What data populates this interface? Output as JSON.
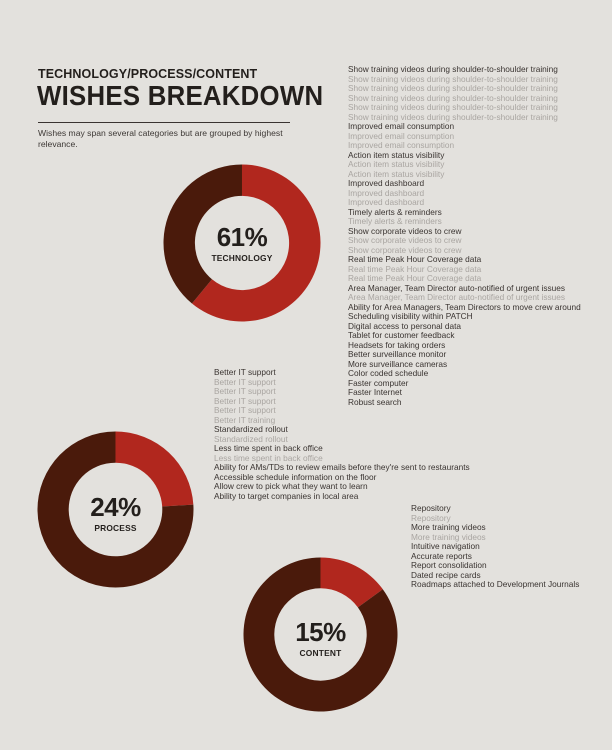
{
  "header": {
    "subtitle": "TECHNOLOGY/PROCESS/CONTENT",
    "title": "WISHES BREAKDOWN",
    "note": "Wishes may span several categories but are grouped by highest relevance."
  },
  "colors": {
    "background": "#e3e1dd",
    "share": "#b1271e",
    "remainder": "#4a1a0b",
    "hole": "#e3e1dd",
    "primary_text": "#3a3431",
    "repeat_text": "#a9a5a1"
  },
  "chart_data": [
    {
      "type": "pie",
      "variant": "donut",
      "label": "TECHNOLOGY",
      "percent_label": "61%",
      "values": [
        61,
        39
      ],
      "colors": [
        "#b1271e",
        "#4a1a0b"
      ],
      "wishes": [
        {
          "text": "Show training videos during shoulder-to-shoulder training",
          "repeat": false
        },
        {
          "text": "Show training videos during shoulder-to-shoulder training",
          "repeat": true
        },
        {
          "text": "Show training videos during shoulder-to-shoulder training",
          "repeat": true
        },
        {
          "text": "Show training videos during shoulder-to-shoulder training",
          "repeat": true
        },
        {
          "text": "Show training videos during shoulder-to-shoulder training",
          "repeat": true
        },
        {
          "text": "Show training videos during shoulder-to-shoulder training",
          "repeat": true
        },
        {
          "text": "Improved email consumption",
          "repeat": false
        },
        {
          "text": "Improved email consumption",
          "repeat": true
        },
        {
          "text": "Improved email consumption",
          "repeat": true
        },
        {
          "text": "Action item status visibility",
          "repeat": false
        },
        {
          "text": "Action item status visibility",
          "repeat": true
        },
        {
          "text": "Action item status visibility",
          "repeat": true
        },
        {
          "text": "Improved dashboard",
          "repeat": false
        },
        {
          "text": "Improved dashboard",
          "repeat": true
        },
        {
          "text": "Improved dashboard",
          "repeat": true
        },
        {
          "text": "Timely alerts & reminders",
          "repeat": false
        },
        {
          "text": "Timely alerts & reminders",
          "repeat": true
        },
        {
          "text": "Show corporate videos to crew",
          "repeat": false
        },
        {
          "text": "Show corporate videos to crew",
          "repeat": true
        },
        {
          "text": "Show corporate videos to crew",
          "repeat": true
        },
        {
          "text": "Real time Peak Hour Coverage data",
          "repeat": false
        },
        {
          "text": "Real time Peak Hour Coverage data",
          "repeat": true
        },
        {
          "text": "Real time Peak Hour Coverage data",
          "repeat": true
        },
        {
          "text": "Area Manager, Team Director auto-notified of urgent issues",
          "repeat": false
        },
        {
          "text": "Area Manager, Team Director auto-notified of urgent issues",
          "repeat": true
        },
        {
          "text": "Ability for Area Managers, Team Directors to move crew around",
          "repeat": false
        },
        {
          "text": "Scheduling visibility within PATCH",
          "repeat": false
        },
        {
          "text": "Digital access to personal data",
          "repeat": false
        },
        {
          "text": "Tablet for customer feedback",
          "repeat": false
        },
        {
          "text": "Headsets for taking orders",
          "repeat": false
        },
        {
          "text": "Better surveillance monitor",
          "repeat": false
        },
        {
          "text": "More surveillance cameras",
          "repeat": false
        },
        {
          "text": "Color coded schedule",
          "repeat": false
        },
        {
          "text": "Faster computer",
          "repeat": false
        },
        {
          "text": "Faster Internet",
          "repeat": false
        },
        {
          "text": "Robust search",
          "repeat": false
        }
      ]
    },
    {
      "type": "pie",
      "variant": "donut",
      "label": "PROCESS",
      "percent_label": "24%",
      "values": [
        24,
        76
      ],
      "colors": [
        "#b1271e",
        "#4a1a0b"
      ],
      "wishes": [
        {
          "text": "Better IT support",
          "repeat": false
        },
        {
          "text": "Better IT support",
          "repeat": true
        },
        {
          "text": "Better IT support",
          "repeat": true
        },
        {
          "text": "Better IT support",
          "repeat": true
        },
        {
          "text": "Better IT support",
          "repeat": true
        },
        {
          "text": "Better IT training",
          "repeat": true
        },
        {
          "text": "Standardized rollout",
          "repeat": false
        },
        {
          "text": "Standardized rollout",
          "repeat": true
        },
        {
          "text": "Less time spent in back office",
          "repeat": false
        },
        {
          "text": "Less time spent in back office",
          "repeat": true
        },
        {
          "text": "Ability for AMs/TDs to review emails before they're sent to restaurants",
          "repeat": false
        },
        {
          "text": "Accessible schedule information on the floor",
          "repeat": false
        },
        {
          "text": "Allow crew to pick what they want to learn",
          "repeat": false
        },
        {
          "text": "Ability to target companies in local area",
          "repeat": false
        }
      ]
    },
    {
      "type": "pie",
      "variant": "donut",
      "label": "CONTENT",
      "percent_label": "15%",
      "values": [
        15,
        85
      ],
      "colors": [
        "#b1271e",
        "#4a1a0b"
      ],
      "wishes": [
        {
          "text": "Repository",
          "repeat": false
        },
        {
          "text": "Repository",
          "repeat": true
        },
        {
          "text": "More training videos",
          "repeat": false
        },
        {
          "text": "More training videos",
          "repeat": true
        },
        {
          "text": "Intuitive navigation",
          "repeat": false
        },
        {
          "text": "Accurate reports",
          "repeat": false
        },
        {
          "text": "Report consolidation",
          "repeat": false
        },
        {
          "text": "Dated recipe cards",
          "repeat": false
        },
        {
          "text": "Roadmaps attached to Development Journals",
          "repeat": false
        }
      ]
    }
  ]
}
